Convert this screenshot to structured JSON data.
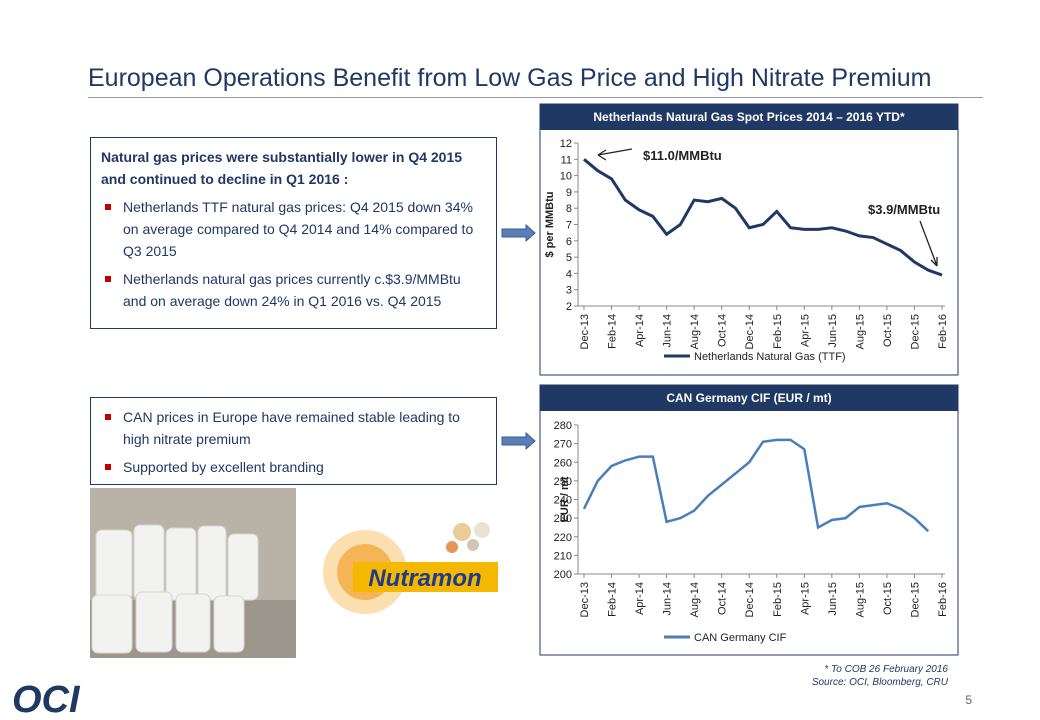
{
  "slide": {
    "title": "European Operations Benefit from Low Gas Price and High Nitrate Premium",
    "box1_heading": "Natural gas prices were substantially lower in Q4 2015 and continued to decline in Q1 2016 :",
    "box1_bullets": [
      "Netherlands TTF natural gas prices: Q4 2015 down 34% on average compared to Q4 2014 and 14% compared to Q3 2015",
      "Netherlands natural gas prices currently c.$3.9/MMBtu and on average down 24% in Q1 2016 vs. Q4 2015"
    ],
    "box2_bullets": [
      "CAN prices in Europe have remained stable leading to high nitrate premium",
      "Supported by excellent branding"
    ],
    "brand": "Nutramon",
    "logo": "OCI",
    "footnote": "* To COB 26 February 2016",
    "source": "Source: OCI, Bloomberg, CRU",
    "page": "5"
  },
  "chart_data": [
    {
      "type": "line",
      "title": "Netherlands Natural Gas Spot Prices 2014 – 2016 YTD*",
      "y_label": "$ per MMBtu",
      "categories": [
        "Dec-13",
        null,
        "Feb-14",
        null,
        "Apr-14",
        null,
        "Jun-14",
        null,
        "Aug-14",
        null,
        "Oct-14",
        null,
        "Dec-14",
        null,
        "Feb-15",
        null,
        "Apr-15",
        null,
        "Jun-15",
        null,
        "Aug-15",
        null,
        "Oct-15",
        null,
        "Dec-15",
        null,
        "Feb-16"
      ],
      "series": [
        {
          "name": "Netherlands Natural Gas (TTF)",
          "color": "#1f3864",
          "values": [
            11.0,
            10.3,
            9.8,
            8.5,
            7.9,
            7.5,
            6.4,
            7.0,
            8.5,
            8.4,
            8.6,
            8.0,
            6.8,
            7.0,
            7.8,
            6.8,
            6.7,
            6.7,
            6.8,
            6.6,
            6.3,
            6.2,
            5.8,
            5.4,
            4.7,
            4.2,
            3.9
          ]
        }
      ],
      "ylim": [
        2,
        12
      ],
      "yticks": [
        2,
        3,
        4,
        5,
        6,
        7,
        8,
        9,
        10,
        11,
        12
      ],
      "annotations": [
        "$11.0/MMBtu",
        "$3.9/MMBtu"
      ]
    },
    {
      "type": "line",
      "title": "CAN Germany CIF (EUR / mt)",
      "y_label": "EUR / mt",
      "categories": [
        "Dec-13",
        null,
        "Feb-14",
        null,
        "Apr-14",
        null,
        "Jun-14",
        null,
        "Aug-14",
        null,
        "Oct-14",
        null,
        "Dec-14",
        null,
        "Feb-15",
        null,
        "Apr-15",
        null,
        "Jun-15",
        null,
        "Aug-15",
        null,
        "Oct-15",
        null,
        "Dec-15",
        null,
        "Feb-16"
      ],
      "series": [
        {
          "name": "CAN Germany CIF",
          "color": "#4a7ebb",
          "values": [
            235,
            250,
            258,
            261,
            263,
            263,
            228,
            230,
            234,
            242,
            248,
            254,
            260,
            271,
            272,
            272,
            267,
            225,
            229,
            230,
            236,
            237,
            238,
            235,
            230,
            223,
            null
          ]
        }
      ],
      "ylim": [
        200,
        280
      ],
      "yticks": [
        200,
        210,
        220,
        230,
        240,
        250,
        260,
        270,
        280
      ]
    }
  ]
}
